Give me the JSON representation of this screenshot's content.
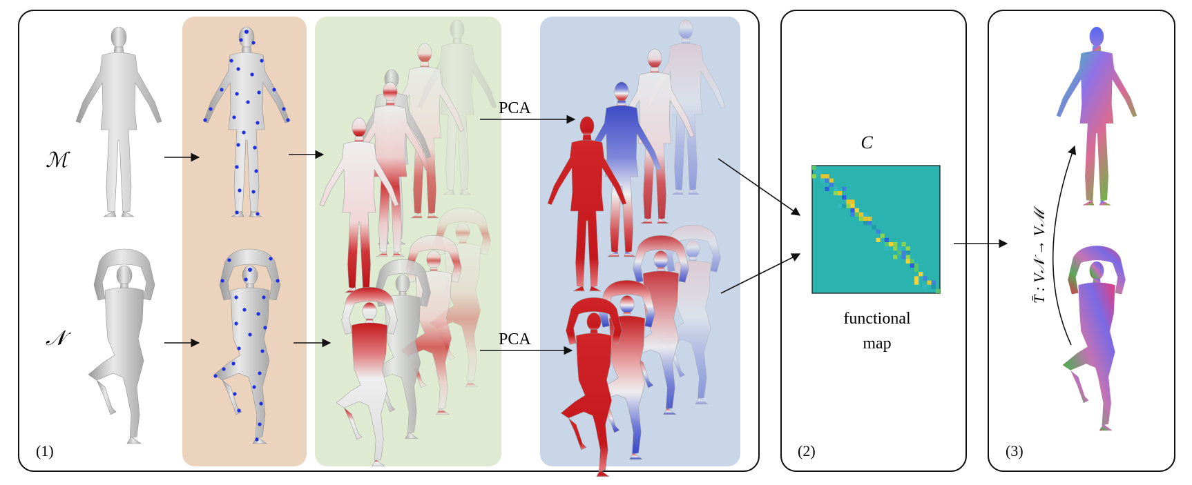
{
  "panels": {
    "panel1": {
      "number_label": "(1)"
    },
    "panel2": {
      "number_label": "(2)",
      "matrix_label": "C",
      "caption_line1": "functional",
      "caption_line2": "map"
    },
    "panel3": {
      "number_label": "(3)",
      "transfer_label": "T̄ : V𝒩 → Vℳ"
    }
  },
  "shapes": {
    "source_label": "ℳ",
    "target_label": "𝒩"
  },
  "arrows": {
    "pca_top": "PCA",
    "pca_bottom": "PCA"
  },
  "colors": {
    "stage_landmarks": "#ecd3bd",
    "stage_descriptors": "#dfead2",
    "stage_pca": "#c9d6e8",
    "descriptor_hot": "#c8161b",
    "descriptor_cold": "#3b48c7",
    "landmark_dot": "#1f2ee0",
    "matrix_background": "#2bb3b0"
  },
  "icons": {
    "figure": "human-mesh-icon",
    "landmark": "landmark-dot-icon"
  }
}
